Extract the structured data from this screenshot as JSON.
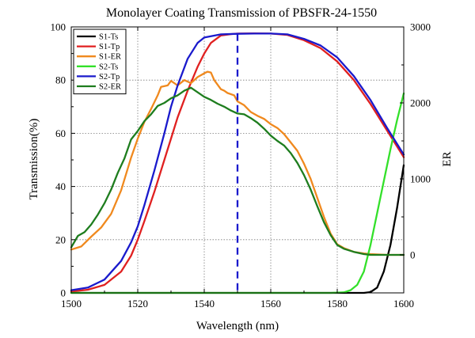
{
  "chart_data": {
    "type": "line",
    "title": "Monolayer Coating Transmission of PBSFR-24-1550",
    "xlabel": "Wavelength (nm)",
    "ylabel": "Transmission(%)",
    "y2label": "ER",
    "xlim": [
      1500,
      1600
    ],
    "ylim": [
      0,
      100
    ],
    "y2lim": [
      -500,
      3000
    ],
    "x_ticks": [
      1500,
      1520,
      1540,
      1560,
      1580,
      1600
    ],
    "y_ticks": [
      0,
      20,
      40,
      60,
      80,
      100
    ],
    "y2_ticks": [
      0,
      1000,
      2000,
      3000
    ],
    "grid": true,
    "legend_position": "top-left",
    "reference_line": {
      "x": 1550,
      "color": "#1a1acc",
      "style": "dashed"
    },
    "series": [
      {
        "name": "S1-Ts",
        "color": "#000000",
        "axis": "left",
        "x": [
          1500,
          1580,
          1588,
          1590,
          1592,
          1594,
          1596,
          1598,
          1600
        ],
        "y": [
          0,
          0,
          0,
          0.3,
          2,
          8,
          18,
          32,
          48
        ]
      },
      {
        "name": "S1-Tp",
        "color": "#e02020",
        "axis": "left",
        "x": [
          1500,
          1505,
          1510,
          1515,
          1518,
          1520,
          1522,
          1525,
          1528,
          1530,
          1532,
          1535,
          1538,
          1540,
          1542,
          1545,
          1548,
          1550,
          1555,
          1560,
          1565,
          1570,
          1575,
          1580,
          1585,
          1590,
          1595,
          1600
        ],
        "y": [
          0.5,
          1.2,
          3,
          8,
          14,
          20,
          27,
          38,
          50,
          58,
          66,
          76,
          85,
          90,
          94,
          96.8,
          97.3,
          97.5,
          97.6,
          97.5,
          97,
          95,
          92,
          87,
          80,
          71,
          61,
          51
        ]
      },
      {
        "name": "S1-ER",
        "color": "#f0891e",
        "axis": "right",
        "x": [
          1500,
          1503,
          1506,
          1509,
          1512,
          1515,
          1518,
          1520,
          1522,
          1524,
          1526,
          1527,
          1529,
          1530,
          1532,
          1534,
          1536,
          1538,
          1540,
          1541,
          1542,
          1543,
          1545,
          1546,
          1547,
          1549,
          1550,
          1552,
          1554,
          1556,
          1558,
          1560,
          1562,
          1564,
          1566,
          1568,
          1570,
          1572,
          1574,
          1576,
          1578,
          1580,
          1582,
          1585,
          1588,
          1590,
          1595,
          1600
        ],
        "y": [
          70,
          110,
          240,
          360,
          540,
          850,
          1280,
          1530,
          1750,
          1920,
          2100,
          2210,
          2230,
          2290,
          2230,
          2300,
          2260,
          2340,
          2390,
          2410,
          2400,
          2300,
          2180,
          2160,
          2130,
          2100,
          2020,
          1970,
          1880,
          1830,
          1790,
          1720,
          1670,
          1590,
          1480,
          1370,
          1200,
          1000,
          750,
          500,
          280,
          140,
          90,
          40,
          20,
          10,
          0,
          0
        ]
      },
      {
        "name": "S2-Ts",
        "color": "#33e02a",
        "axis": "left",
        "x": [
          1500,
          1578,
          1582,
          1584,
          1586,
          1588,
          1590,
          1592,
          1594,
          1596,
          1598,
          1600
        ],
        "y": [
          0,
          0,
          0.2,
          1,
          3,
          8,
          18,
          30,
          42,
          54,
          65,
          75
        ]
      },
      {
        "name": "S2-Tp",
        "color": "#1a1acc",
        "axis": "left",
        "x": [
          1500,
          1505,
          1510,
          1515,
          1518,
          1520,
          1522,
          1525,
          1528,
          1530,
          1532,
          1535,
          1538,
          1540,
          1545,
          1550,
          1555,
          1560,
          1565,
          1570,
          1575,
          1580,
          1585,
          1590,
          1595,
          1600
        ],
        "y": [
          1,
          2,
          5,
          12,
          19,
          25,
          33,
          46,
          60,
          70,
          78,
          88,
          94,
          96,
          97.2,
          97.4,
          97.5,
          97.5,
          97.2,
          95.5,
          93,
          88.5,
          81.5,
          72.5,
          62,
          52
        ]
      },
      {
        "name": "S2-ER",
        "color": "#1e7d1e",
        "axis": "right",
        "x": [
          1500,
          1502,
          1504,
          1506,
          1508,
          1510,
          1512,
          1514,
          1516,
          1518,
          1520,
          1522,
          1524,
          1526,
          1528,
          1530,
          1532,
          1534,
          1536,
          1538,
          1540,
          1542,
          1544,
          1546,
          1548,
          1550,
          1552,
          1554,
          1556,
          1558,
          1560,
          1562,
          1564,
          1566,
          1568,
          1570,
          1572,
          1574,
          1576,
          1578,
          1580,
          1582,
          1585,
          1588,
          1590,
          1595,
          1600
        ],
        "y": [
          100,
          250,
          300,
          400,
          530,
          680,
          860,
          1080,
          1270,
          1520,
          1630,
          1760,
          1850,
          1960,
          2000,
          2060,
          2100,
          2160,
          2200,
          2140,
          2080,
          2040,
          1990,
          1950,
          1900,
          1860,
          1850,
          1800,
          1740,
          1660,
          1570,
          1500,
          1440,
          1340,
          1210,
          1050,
          860,
          640,
          430,
          260,
          130,
          80,
          40,
          10,
          0,
          0,
          0
        ]
      }
    ]
  }
}
